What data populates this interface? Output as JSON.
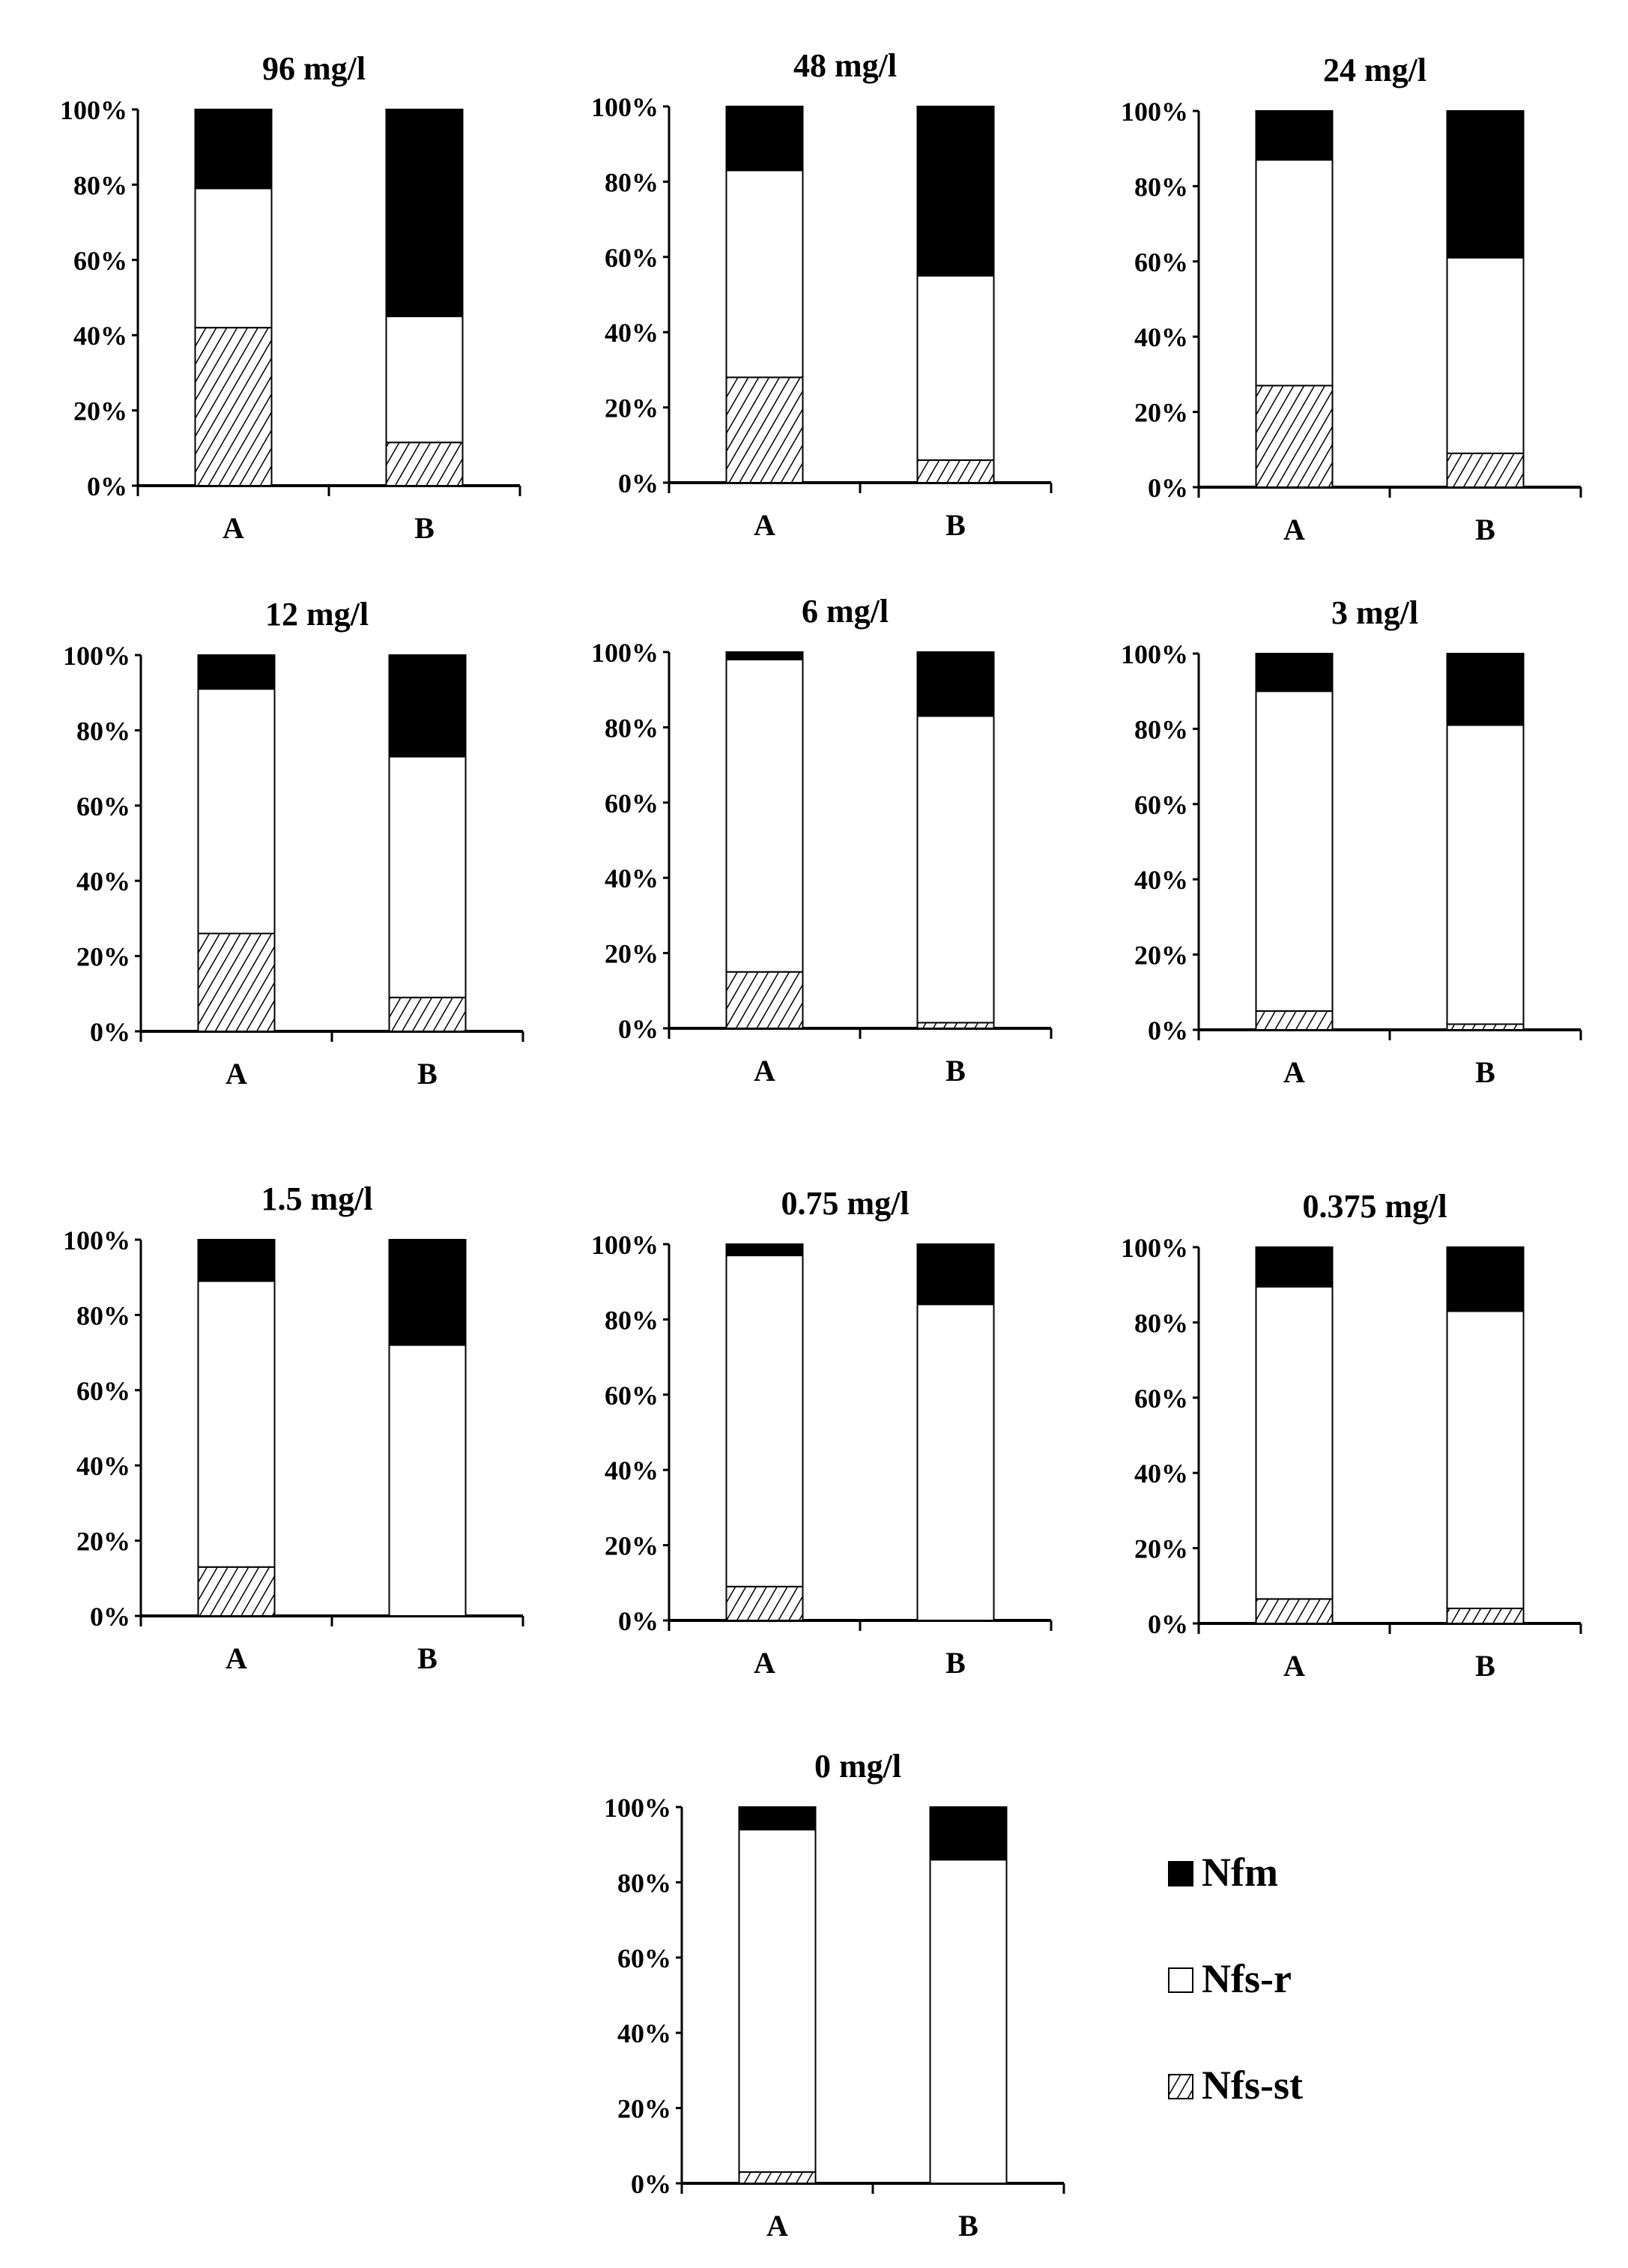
{
  "chart_data": {
    "type": "bar",
    "stacked": true,
    "normalized_percent": true,
    "ylim": [
      0,
      100
    ],
    "yticks": [
      "0%",
      "20%",
      "40%",
      "60%",
      "80%",
      "100%"
    ],
    "categories": [
      "A",
      "B"
    ],
    "series_names": [
      "Nfs-st",
      "Nfs-r",
      "Nfm"
    ],
    "legend": {
      "position": "bottom-right",
      "entries": [
        {
          "name": "Nfm",
          "fill": "solid-black"
        },
        {
          "name": "Nfs-r",
          "fill": "white"
        },
        {
          "name": "Nfs-st",
          "fill": "hatched"
        }
      ]
    },
    "panels": [
      {
        "title": "96 mg/l",
        "A": [
          42,
          37,
          21
        ],
        "B": [
          11.5,
          33.5,
          55
        ]
      },
      {
        "title": "48 mg/l",
        "A": [
          28,
          55,
          17
        ],
        "B": [
          6,
          49,
          45
        ]
      },
      {
        "title": "24 mg/l",
        "A": [
          27,
          60,
          13
        ],
        "B": [
          9,
          52,
          39
        ]
      },
      {
        "title": "12 mg/l",
        "A": [
          26,
          65,
          9
        ],
        "B": [
          9,
          64,
          27
        ]
      },
      {
        "title": "6 mg/l",
        "A": [
          15,
          83,
          2
        ],
        "B": [
          1.5,
          81.5,
          17
        ]
      },
      {
        "title": "3 mg/l",
        "A": [
          5,
          85,
          10
        ],
        "B": [
          1.5,
          79.5,
          19
        ]
      },
      {
        "title": "1.5 mg/l",
        "A": [
          13,
          76,
          11
        ],
        "B": [
          0,
          72,
          28
        ]
      },
      {
        "title": "0.75 mg/l",
        "A": [
          9,
          88,
          3
        ],
        "B": [
          0,
          84,
          16
        ]
      },
      {
        "title": "0.375 mg/l",
        "A": [
          6.5,
          83,
          10.5
        ],
        "B": [
          4,
          79,
          17
        ]
      },
      {
        "title": "0 mg/l",
        "A": [
          3,
          91,
          6
        ],
        "B": [
          0,
          86,
          14
        ]
      }
    ]
  }
}
